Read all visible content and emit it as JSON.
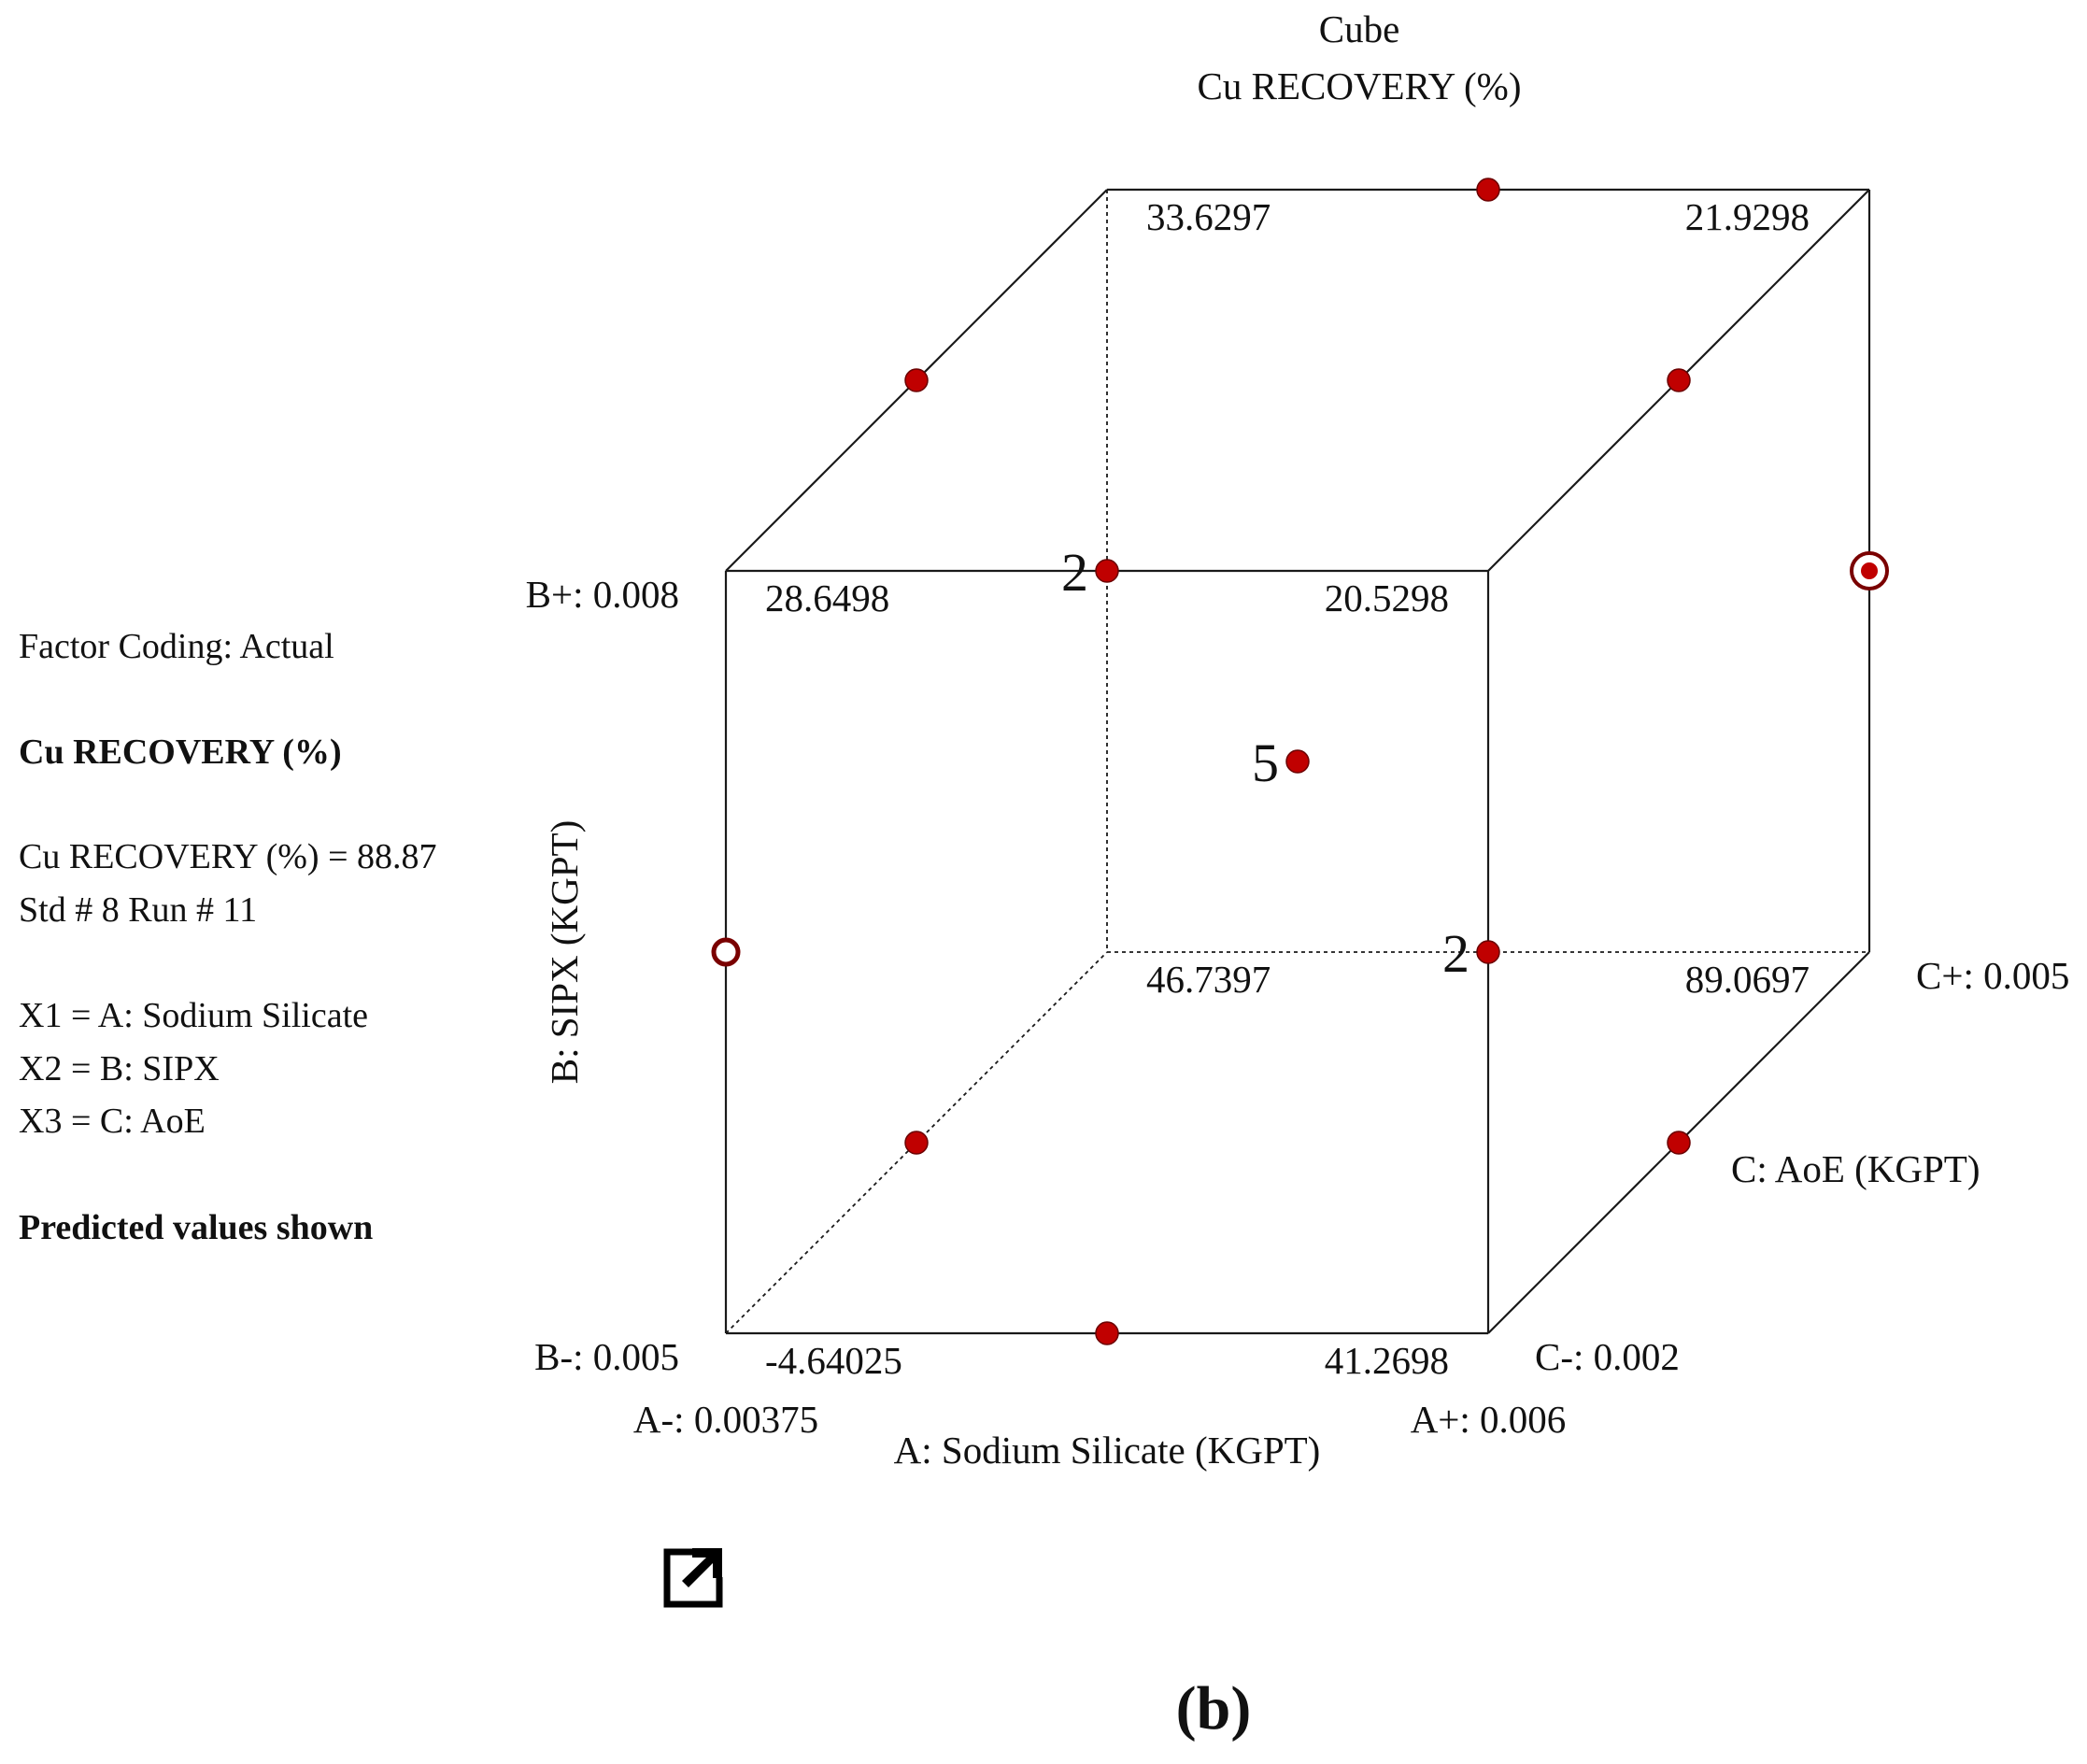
{
  "chart_data": {
    "type": "cube",
    "title": "Cube",
    "subtitle": "Cu RECOVERY (%)",
    "axes": {
      "A": {
        "name": "A: Sodium Silicate  (KGPT)",
        "low_label": "A-: 0.00375",
        "high_label": "A+: 0.006",
        "low": 0.00375,
        "high": 0.006
      },
      "B": {
        "name": "B: SIPX (KGPT)",
        "low_label": "B-: 0.005",
        "high_label": "B+: 0.008",
        "low": 0.005,
        "high": 0.008
      },
      "C": {
        "name": "C: AoE (KGPT)",
        "low_label": "C-: 0.002",
        "high_label": "C+: 0.005",
        "low": 0.002,
        "high": 0.005
      }
    },
    "corners": [
      {
        "A": "-",
        "B": "-",
        "C": "-",
        "value": -4.64025,
        "label": "-4.64025"
      },
      {
        "A": "+",
        "B": "-",
        "C": "-",
        "value": 41.2698,
        "label": "41.2698"
      },
      {
        "A": "-",
        "B": "+",
        "C": "-",
        "value": 28.6498,
        "label": "28.6498"
      },
      {
        "A": "+",
        "B": "+",
        "C": "-",
        "value": 20.5298,
        "label": "20.5298"
      },
      {
        "A": "-",
        "B": "-",
        "C": "+",
        "value": 46.7397,
        "label": "46.7397"
      },
      {
        "A": "+",
        "B": "-",
        "C": "+",
        "value": 89.0697,
        "label": "89.0697"
      },
      {
        "A": "-",
        "B": "+",
        "C": "+",
        "value": 33.6297,
        "label": "33.6297"
      },
      {
        "A": "+",
        "B": "+",
        "C": "+",
        "value": 21.9298,
        "label": "21.9298"
      }
    ],
    "design_points": [
      {
        "A": 0,
        "B": -1,
        "C": -1,
        "count": null
      },
      {
        "A": -1,
        "B": -1,
        "C": 0,
        "count": null
      },
      {
        "A": 1,
        "B": -1,
        "C": 0,
        "count": null
      },
      {
        "A": -1,
        "B": 1,
        "C": 0,
        "count": null
      },
      {
        "A": 1,
        "B": 1,
        "C": 0,
        "count": null
      },
      {
        "A": 0,
        "B": 1,
        "C": 1,
        "count": null
      },
      {
        "A": 0,
        "B": 1,
        "C": -1,
        "count": "2"
      },
      {
        "A": 0,
        "B": -1,
        "C": 1,
        "count": "2"
      },
      {
        "A": 0,
        "B": 0,
        "C": 0,
        "count": "5"
      },
      {
        "A": -1,
        "B": 0,
        "C": -1,
        "count": null,
        "style": "hollow"
      },
      {
        "A": 1,
        "B": 0,
        "C": 1,
        "count": null,
        "style": "selected"
      }
    ],
    "point_color": "#c00000",
    "edge_color": "#1a1a1a"
  },
  "panel": {
    "factor_coding": "Factor Coding: Actual",
    "response_name": "Cu RECOVERY (%)",
    "response_value": "Cu RECOVERY (%) = 88.87",
    "std_run": "Std # 8 Run # 11",
    "x1": "X1 = A: Sodium Silicate",
    "x2": "X2 = B: SIPX",
    "x3": "X3 = C: AoE",
    "predicted": "Predicted values shown"
  },
  "caption": "(b)",
  "icons": {
    "expand": "external-link-icon"
  }
}
